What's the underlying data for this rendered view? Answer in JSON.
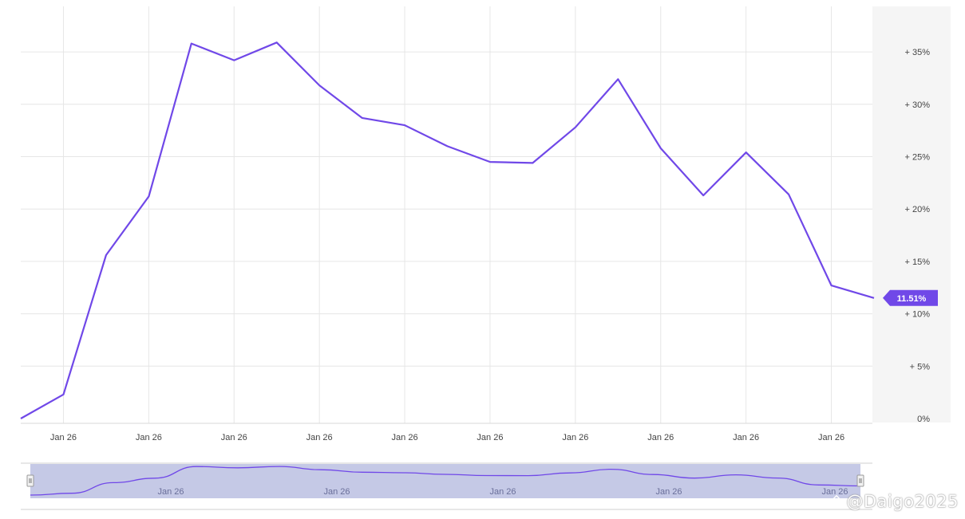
{
  "chart_data": {
    "type": "line",
    "x": [
      "Jan 26",
      "Jan 26",
      "Jan 26",
      "Jan 26",
      "Jan 26",
      "Jan 26",
      "Jan 26",
      "Jan 26",
      "Jan 26",
      "Jan 26",
      "Jan 26",
      "Jan 26",
      "Jan 26",
      "Jan 26",
      "Jan 26",
      "Jan 26",
      "Jan 26",
      "Jan 26",
      "Jan 26",
      "Jan 26",
      "Jan 26"
    ],
    "series": [
      {
        "values": [
          0,
          2.3,
          15.6,
          21.2,
          35.8,
          34.2,
          35.9,
          31.8,
          28.7,
          28.0,
          26.0,
          24.5,
          24.4,
          27.8,
          32.4,
          25.8,
          21.3,
          25.4,
          21.4,
          12.7,
          11.51
        ]
      }
    ],
    "ylim": [
      0,
      40
    ],
    "y_ticks": [
      0,
      5,
      10,
      15,
      20,
      25,
      30,
      35
    ],
    "y_tick_labels": [
      "0%",
      "+ 5%",
      "+ 10%",
      "+ 15%",
      "+ 20%",
      "+ 25%",
      "+ 30%",
      "+ 35%"
    ],
    "x_tick_labels": [
      "Jan 26",
      "Jan 26",
      "Jan 26",
      "Jan 26",
      "Jan 26",
      "Jan 26",
      "Jan 26",
      "Jan 26",
      "Jan 26",
      "Jan 26"
    ],
    "navigator_labels": [
      "Jan 26",
      "Jan 26",
      "Jan 26",
      "Jan 26",
      "Jan 26"
    ],
    "last_value_label": "11.51%",
    "grid": true,
    "line_color": "#7048e8",
    "navigator_fill": "#c5c9e6",
    "y_axis_side": "right"
  },
  "watermark": "@Daigo2025"
}
